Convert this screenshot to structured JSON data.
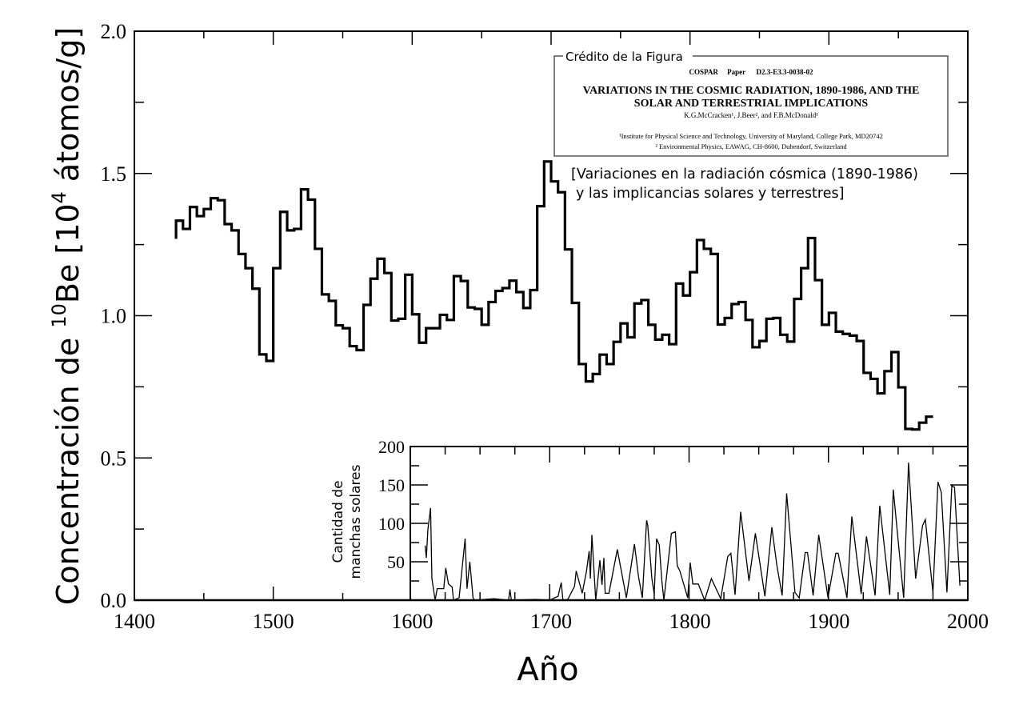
{
  "chart_data": [
    {
      "type": "line",
      "style": "step",
      "title": "",
      "xlabel": "Año",
      "ylabel_parts": [
        "Concentración de ",
        "10",
        "Be [10",
        "4",
        " átomos/g]"
      ],
      "xlim": [
        1400,
        2000
      ],
      "ylim": [
        0.0,
        2.0
      ],
      "xticks": [
        "1400",
        "1500",
        "1600",
        "1700",
        "1800",
        "1900",
        "2000"
      ],
      "yticks": [
        "0.0",
        "0.5",
        "1.0",
        "1.5",
        "2.0"
      ],
      "grid": false,
      "series": [
        {
          "name": "10Be",
          "x_start": 1430,
          "x_step": 5,
          "start_value": 1.27,
          "values": [
            1.334,
            1.305,
            1.382,
            1.35,
            1.375,
            1.413,
            1.406,
            1.322,
            1.3,
            1.217,
            1.167,
            1.095,
            0.864,
            0.841,
            1.167,
            1.365,
            1.3,
            1.305,
            1.444,
            1.408,
            1.235,
            1.075,
            1.052,
            0.966,
            0.956,
            0.893,
            0.879,
            1.038,
            1.13,
            1.2,
            1.15,
            0.983,
            0.989,
            1.144,
            1.005,
            0.905,
            0.956,
            0.956,
            1.003,
            0.985,
            1.139,
            1.122,
            1.029,
            1.024,
            0.968,
            1.048,
            1.087,
            1.097,
            1.123,
            1.083,
            1.027,
            1.09,
            1.385,
            1.542,
            1.472,
            1.434,
            1.233,
            1.045,
            0.83,
            0.769,
            0.795,
            0.863,
            0.83,
            0.908,
            0.973,
            0.924,
            1.043,
            1.055,
            0.968,
            0.916,
            0.933,
            0.9,
            1.113,
            1.071,
            1.153,
            1.266,
            1.235,
            1.217,
            0.969,
            0.992,
            1.041,
            1.048,
            0.985,
            0.889,
            0.911,
            0.989,
            0.992,
            0.933,
            0.909,
            1.059,
            1.167,
            1.273,
            1.125,
            0.968,
            1.01,
            0.944,
            0.936,
            0.93,
            0.911,
            0.799,
            0.778,
            0.727,
            0.805,
            0.872,
            0.748,
            0.602,
            0.6,
            0.624,
            0.645
          ]
        }
      ],
      "annotations": {
        "credit_legend": "Crédito de la Figura",
        "credit_line1": "COSPAR     Paper      D2.3-E3.3-0038-02",
        "credit_title1": "VARIATIONS IN THE COSMIC RADIATION, 1890-1986, AND THE",
        "credit_title2": "SOLAR AND TERRESTRIAL IMPLICATIONS",
        "credit_authors": "K.G.McCracken¹, J.Beer², and F.B.McDonald¹",
        "credit_affil1": "¹Institute for Physical Science and Technology, University of Maryland, College Park, MD20742",
        "credit_affil2": "² Environmental Physics, EAWAG, CH-8600, Dubendorf, Switzerland",
        "translation1": "[Variaciones en la radiación cósmica (1890-1986)",
        "translation2": "y las implicancias solares y terrestres]"
      }
    },
    {
      "type": "line",
      "title": "",
      "ylabel": [
        "Cantidad de",
        "manchas solares"
      ],
      "xlim": [
        1600,
        2000
      ],
      "ylim": [
        0,
        200
      ],
      "yticks": [
        "50",
        "100",
        "150",
        "200"
      ],
      "points": [
        [
          1610.7,
          71
        ],
        [
          1611.5,
          55
        ],
        [
          1612.6,
          92
        ],
        [
          1614.5,
          120
        ],
        [
          1615.5,
          28
        ],
        [
          1617.8,
          0
        ],
        [
          1619.3,
          15
        ],
        [
          1624,
          15
        ],
        [
          1625.4,
          42
        ],
        [
          1627.4,
          21
        ],
        [
          1630,
          17
        ],
        [
          1631,
          0
        ],
        [
          1635,
          3
        ],
        [
          1639.3,
          80
        ],
        [
          1640.7,
          15
        ],
        [
          1642.7,
          50
        ],
        [
          1645,
          3
        ],
        [
          1646,
          0
        ],
        [
          1660,
          2
        ],
        [
          1670.5,
          0
        ],
        [
          1671.5,
          14
        ],
        [
          1672.5,
          0
        ],
        [
          1690,
          1
        ],
        [
          1700,
          0
        ],
        [
          1703.5,
          3
        ],
        [
          1706,
          5
        ],
        [
          1708.3,
          23
        ],
        [
          1709.5,
          0
        ],
        [
          1713,
          1
        ],
        [
          1717.8,
          18
        ],
        [
          1719,
          38
        ],
        [
          1723.3,
          9
        ],
        [
          1726.4,
          38
        ],
        [
          1728.3,
          64
        ],
        [
          1729.2,
          28
        ],
        [
          1730.3,
          85
        ],
        [
          1733,
          0
        ],
        [
          1736,
          52
        ],
        [
          1737.5,
          20
        ],
        [
          1738.9,
          55
        ],
        [
          1739.8,
          9
        ],
        [
          1742.5,
          9
        ],
        [
          1748.5,
          66
        ],
        [
          1755,
          3
        ],
        [
          1759,
          52
        ],
        [
          1760.8,
          73
        ],
        [
          1763.8,
          30
        ],
        [
          1766.5,
          3
        ],
        [
          1769.5,
          104
        ],
        [
          1770.4,
          97
        ],
        [
          1773.3,
          28
        ],
        [
          1775,
          8
        ],
        [
          1776.7,
          80
        ],
        [
          1778.6,
          72
        ],
        [
          1780.5,
          25
        ],
        [
          1781.9,
          0
        ],
        [
          1787.3,
          87
        ],
        [
          1790.2,
          89
        ],
        [
          1791.5,
          45
        ],
        [
          1793.4,
          38
        ],
        [
          1799,
          3
        ],
        [
          1800.8,
          49
        ],
        [
          1802.7,
          21
        ],
        [
          1806.6,
          21
        ],
        [
          1811.2,
          0
        ],
        [
          1816,
          28
        ],
        [
          1822.7,
          2
        ],
        [
          1827.8,
          57
        ],
        [
          1830,
          61
        ],
        [
          1833,
          7
        ],
        [
          1837,
          115
        ],
        [
          1843,
          25
        ],
        [
          1847.6,
          87
        ],
        [
          1854.4,
          5
        ],
        [
          1859.4,
          95
        ],
        [
          1863,
          45
        ],
        [
          1866.8,
          6
        ],
        [
          1870,
          139
        ],
        [
          1876,
          10
        ],
        [
          1879,
          3
        ],
        [
          1883.3,
          62
        ],
        [
          1885,
          62
        ],
        [
          1889,
          6
        ],
        [
          1893,
          85
        ],
        [
          1899.7,
          3
        ],
        [
          1905.3,
          61
        ],
        [
          1907,
          61
        ],
        [
          1913.3,
          3
        ],
        [
          1916.8,
          109
        ],
        [
          1923.5,
          8
        ],
        [
          1927.3,
          83
        ],
        [
          1933.5,
          6
        ],
        [
          1936.8,
          123
        ],
        [
          1944,
          7
        ],
        [
          1946.5,
          144
        ],
        [
          1954,
          3
        ],
        [
          1957.5,
          179
        ],
        [
          1962.6,
          28
        ],
        [
          1967.5,
          97
        ],
        [
          1969.5,
          105
        ],
        [
          1975,
          10
        ],
        [
          1978.6,
          154
        ],
        [
          1981,
          140
        ],
        [
          1985,
          10
        ],
        [
          1988.5,
          149
        ],
        [
          1990.5,
          147
        ],
        [
          1994.3,
          19
        ]
      ]
    }
  ]
}
